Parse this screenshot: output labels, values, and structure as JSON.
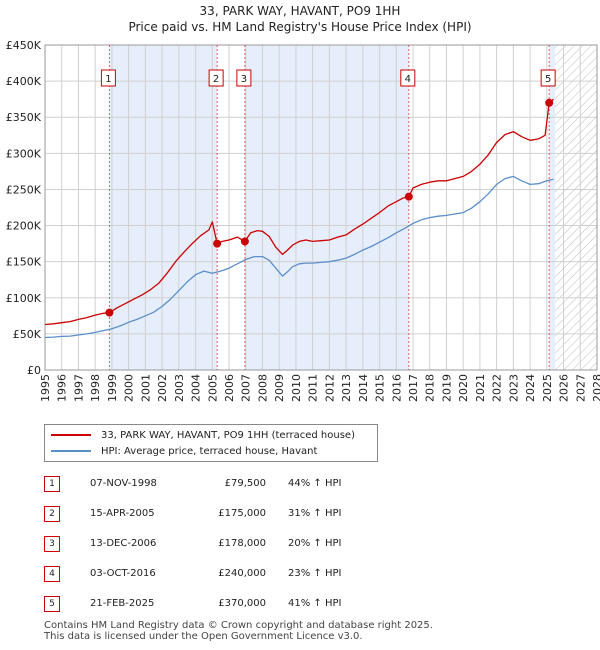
{
  "title_line1": "33, PARK WAY, HAVANT, PO9 1HH",
  "title_line2": "Price paid vs. HM Land Registry's House Price Index (HPI)",
  "colors": {
    "price_line": "#cc0000",
    "hpi_line": "#5b8fc9",
    "shade": "#e6eefb",
    "marker_border": "#cc0000",
    "grid": "#d0d0d0"
  },
  "chart_data": {
    "type": "line",
    "title": "Price paid vs. HM Land Registry's House Price Index (HPI)",
    "xlabel": "",
    "ylabel": "",
    "xlim": [
      1995,
      2028
    ],
    "ylim": [
      0,
      450000
    ],
    "ytick_labels": [
      "£0",
      "£50K",
      "£100K",
      "£150K",
      "£200K",
      "£250K",
      "£300K",
      "£350K",
      "£400K",
      "£450K"
    ],
    "yticks": [
      0,
      50000,
      100000,
      150000,
      200000,
      250000,
      300000,
      350000,
      400000,
      450000
    ],
    "xticks": [
      1995,
      1996,
      1997,
      1998,
      1999,
      2000,
      2001,
      2002,
      2003,
      2004,
      2005,
      2006,
      2007,
      2008,
      2009,
      2010,
      2011,
      2012,
      2013,
      2014,
      2015,
      2016,
      2017,
      2018,
      2019,
      2020,
      2021,
      2022,
      2023,
      2024,
      2025,
      2026,
      2027,
      2028
    ],
    "xtick_labels": [
      "1995",
      "1996",
      "1997",
      "1998",
      "1999",
      "2000",
      "2001",
      "2002",
      "2003",
      "2004",
      "2005",
      "2006",
      "2007",
      "2008",
      "2009",
      "2010",
      "2011",
      "2012",
      "2013",
      "2014",
      "2015",
      "2016",
      "2017",
      "2018",
      "2019",
      "2020",
      "2021",
      "2022",
      "2023",
      "2024",
      "2025",
      "2026",
      "2027",
      "2028"
    ],
    "grid": true,
    "future_hatch_start": 2025.5,
    "shaded_spans": [
      [
        1998.85,
        2005.29
      ],
      [
        2006.95,
        2016.75
      ],
      [
        2025.14,
        2025.5
      ]
    ],
    "series": [
      {
        "name": "33, PARK WAY, HAVANT, PO9 1HH (terraced house)",
        "x": [
          1995,
          1995.5,
          1996,
          1996.5,
          1997,
          1997.5,
          1998,
          1998.5,
          1998.85,
          1999.3,
          1999.8,
          2000.3,
          2000.8,
          2001.3,
          2001.8,
          2002.3,
          2002.8,
          2003.3,
          2003.8,
          2004.3,
          2004.8,
          2005.0,
          2005.29,
          2005.6,
          2006.0,
          2006.5,
          2006.95,
          2007.3,
          2007.7,
          2008.0,
          2008.4,
          2008.8,
          2009.2,
          2009.5,
          2009.8,
          2010.2,
          2010.6,
          2011.0,
          2011.5,
          2012.0,
          2012.5,
          2013.0,
          2013.5,
          2014.0,
          2014.5,
          2015.0,
          2015.5,
          2016.0,
          2016.4,
          2016.75,
          2017.0,
          2017.5,
          2018.0,
          2018.5,
          2019.0,
          2019.5,
          2020.0,
          2020.5,
          2021.0,
          2021.5,
          2022.0,
          2022.5,
          2023.0,
          2023.5,
          2024.0,
          2024.5,
          2024.9,
          2025.14,
          2025.4
        ],
        "values": [
          63000,
          64000,
          65500,
          67000,
          70000,
          72500,
          76000,
          78500,
          79500,
          86000,
          92000,
          98000,
          104000,
          111000,
          120000,
          134000,
          150000,
          163000,
          175000,
          186000,
          194000,
          205000,
          175000,
          178000,
          180000,
          184000,
          178000,
          190000,
          193000,
          192000,
          185000,
          170000,
          160000,
          166000,
          173000,
          178000,
          180000,
          178000,
          179000,
          180000,
          184000,
          187000,
          195000,
          202000,
          210000,
          218000,
          227000,
          233000,
          238000,
          240000,
          252000,
          257000,
          260000,
          262000,
          262000,
          265000,
          268000,
          275000,
          285000,
          298000,
          315000,
          326000,
          330000,
          323000,
          318000,
          320000,
          325000,
          370000,
          375000
        ]
      },
      {
        "name": "HPI: Average price, terraced house, Havant",
        "x": [
          1995,
          1995.5,
          1996,
          1996.5,
          1997,
          1997.5,
          1998,
          1998.5,
          1999,
          1999.5,
          2000,
          2000.5,
          2001,
          2001.5,
          2002,
          2002.5,
          2003,
          2003.5,
          2004,
          2004.5,
          2005,
          2005.5,
          2006,
          2006.5,
          2007,
          2007.5,
          2008,
          2008.4,
          2008.8,
          2009.2,
          2009.5,
          2009.8,
          2010.2,
          2010.6,
          2011,
          2011.5,
          2012,
          2012.5,
          2013,
          2013.5,
          2014,
          2014.5,
          2015,
          2015.5,
          2016,
          2016.5,
          2017,
          2017.5,
          2018,
          2018.5,
          2019,
          2019.5,
          2020,
          2020.5,
          2021,
          2021.5,
          2022,
          2022.5,
          2023,
          2023.5,
          2024,
          2024.5,
          2025,
          2025.4
        ],
        "values": [
          45000,
          45500,
          46500,
          47000,
          48500,
          50000,
          52000,
          54500,
          57000,
          61000,
          66000,
          70000,
          75000,
          80000,
          88000,
          98000,
          110000,
          122000,
          132000,
          137000,
          134000,
          137000,
          141000,
          147000,
          153000,
          157000,
          157000,
          152000,
          141000,
          130000,
          136000,
          143000,
          147000,
          148000,
          148000,
          149000,
          150000,
          152000,
          155000,
          160000,
          166000,
          171000,
          177000,
          183000,
          190000,
          196000,
          203000,
          208000,
          211000,
          213000,
          214000,
          216000,
          218000,
          224000,
          233000,
          244000,
          257000,
          265000,
          268000,
          262000,
          257000,
          258000,
          262000,
          264000
        ]
      }
    ],
    "sale_points": [
      {
        "label": "1",
        "x": 1998.85,
        "value": 79500
      },
      {
        "label": "2",
        "x": 2005.29,
        "value": 175000
      },
      {
        "label": "3",
        "x": 2006.95,
        "value": 178000
      },
      {
        "label": "4",
        "x": 2016.75,
        "value": 240000
      },
      {
        "label": "5",
        "x": 2025.14,
        "value": 370000
      }
    ]
  },
  "legend": {
    "price_label": "33, PARK WAY, HAVANT, PO9 1HH (terraced house)",
    "hpi_label": "HPI: Average price, terraced house, Havant"
  },
  "transactions": [
    {
      "num": "1",
      "date": "07-NOV-1998",
      "price": "£79,500",
      "hpi": "44% ↑ HPI"
    },
    {
      "num": "2",
      "date": "15-APR-2005",
      "price": "£175,000",
      "hpi": "31% ↑ HPI"
    },
    {
      "num": "3",
      "date": "13-DEC-2006",
      "price": "£178,000",
      "hpi": "20% ↑ HPI"
    },
    {
      "num": "4",
      "date": "03-OCT-2016",
      "price": "£240,000",
      "hpi": "23% ↑ HPI"
    },
    {
      "num": "5",
      "date": "21-FEB-2025",
      "price": "£370,000",
      "hpi": "41% ↑ HPI"
    }
  ],
  "footer": {
    "line1": "Contains HM Land Registry data © Crown copyright and database right 2025.",
    "line2": "This data is licensed under the Open Government Licence v3.0."
  }
}
